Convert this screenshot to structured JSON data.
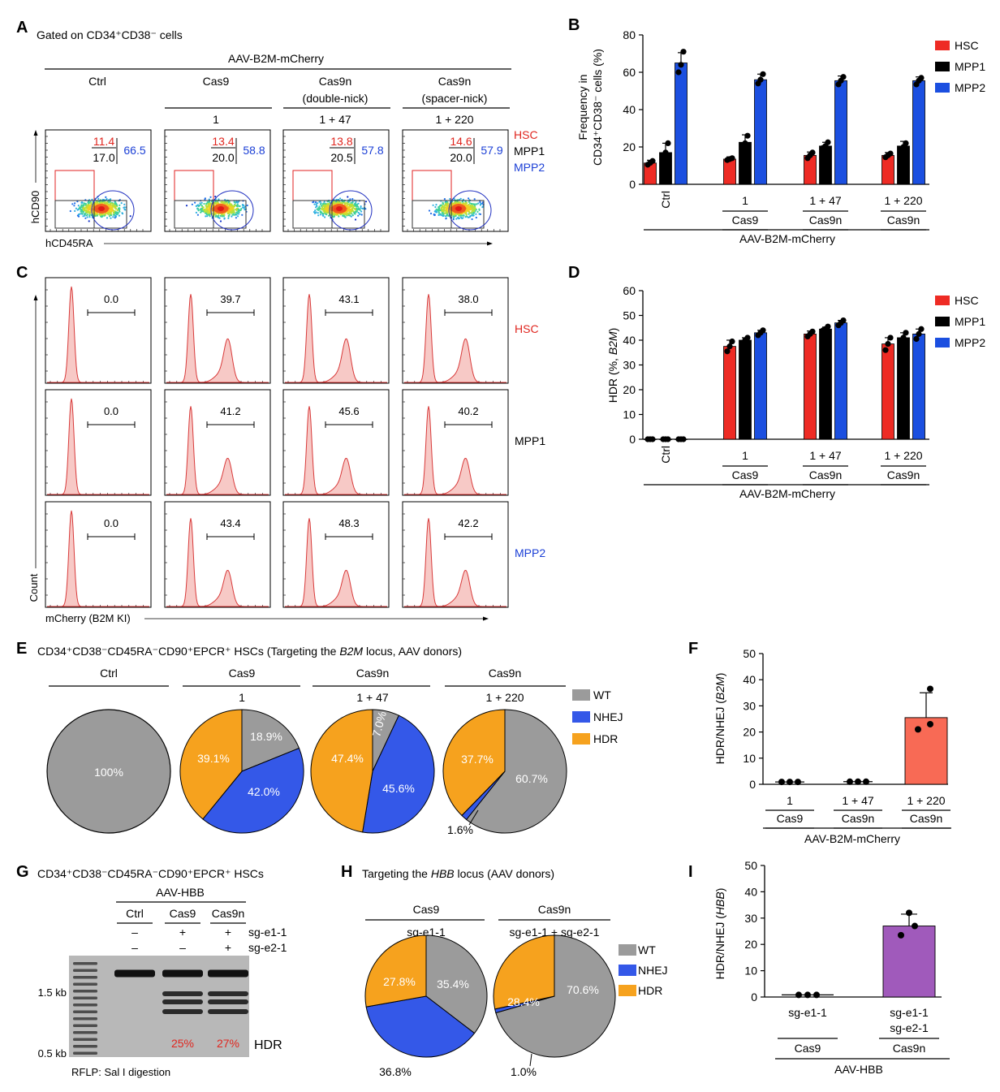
{
  "colors": {
    "hsc": "#ee2b24",
    "mpp1": "#000000",
    "mpp2": "#1b4fe0",
    "wt": "#9b9b9b",
    "nhej": "#3458e8",
    "hdr": "#f6a21e",
    "purple": "#a05abb",
    "salmon": "#f86a55",
    "red_text": "#e0261f",
    "blue_text": "#1b3fd6",
    "hist_fill": "#f7c9c6",
    "hist_line": "#d83a3a"
  },
  "panel_letters": {
    "a": "A",
    "b": "B",
    "c": "C",
    "d": "D",
    "e": "E",
    "f": "F",
    "g": "G",
    "h": "H",
    "i": "I"
  },
  "panel_a": {
    "title": "Gated on CD34⁺CD38⁻ cells",
    "header": "AAV-B2M-mCherry",
    "groups": [
      {
        "name": "Ctrl",
        "sub": "",
        "combo": ""
      },
      {
        "name": "Cas9",
        "sub": "",
        "combo": "1"
      },
      {
        "name": "Cas9n",
        "sub": "(double-nick)",
        "combo": "1 + 47"
      },
      {
        "name": "Cas9n",
        "sub": "(spacer-nick)",
        "combo": "1 + 220"
      }
    ],
    "gates": [
      {
        "hsc": "11.4",
        "mpp1": "17.0",
        "mpp2": "66.5"
      },
      {
        "hsc": "13.4",
        "mpp1": "20.0",
        "mpp2": "58.8"
      },
      {
        "hsc": "13.8",
        "mpp1": "20.5",
        "mpp2": "57.8"
      },
      {
        "hsc": "14.6",
        "mpp1": "20.0",
        "mpp2": "57.9"
      }
    ],
    "legend": [
      "HSC",
      "MPP1",
      "MPP2"
    ],
    "ylabel": "hCD90",
    "xlabel": "hCD45RA"
  },
  "panel_c": {
    "ylabel": "Count",
    "xlabel": "mCherry (B2M KI)",
    "rows": [
      {
        "name": "HSC",
        "values": [
          "0.0",
          "39.7",
          "43.1",
          "38.0"
        ]
      },
      {
        "name": "MPP1",
        "values": [
          "0.0",
          "41.2",
          "45.6",
          "40.2"
        ]
      },
      {
        "name": "MPP2",
        "values": [
          "0.0",
          "43.4",
          "48.3",
          "42.2"
        ]
      }
    ]
  },
  "xgroups_b2m": {
    "ctrl": "Ctrl",
    "combos": [
      "1",
      "1 + 47",
      "1 + 220"
    ],
    "enzymes": [
      "Cas9",
      "Cas9n",
      "Cas9n"
    ],
    "donor": "AAV-B2M-mCherry"
  },
  "chart_data": [
    {
      "id": "B",
      "type": "bar",
      "ylabel": "Frequency in CD34⁺CD38⁻ cells (%)",
      "ylim": [
        0,
        80
      ],
      "yticks": [
        0,
        20,
        40,
        60,
        80
      ],
      "categories": [
        "Ctrl",
        "1",
        "1 + 47",
        "1 + 220"
      ],
      "series": [
        {
          "name": "HSC",
          "values": [
            11.4,
            13.5,
            15.5,
            15.5
          ],
          "err": [
            1.5,
            1.2,
            1.8,
            1.5
          ],
          "points": [
            [
              10.5,
              11.5,
              12.5
            ],
            [
              13,
              13.5,
              14
            ],
            [
              14,
              15.5,
              17
            ],
            [
              14.5,
              15.5,
              16.5
            ]
          ]
        },
        {
          "name": "MPP1",
          "values": [
            17.0,
            22.5,
            20.5,
            20.5
          ],
          "err": [
            5,
            4,
            2,
            2.5
          ],
          "points": [
            [
              13,
              17,
              22
            ],
            [
              18,
              22,
              26
            ],
            [
              19.5,
              20.5,
              22.5
            ],
            [
              18.5,
              20,
              22
            ]
          ]
        },
        {
          "name": "MPP2",
          "values": [
            65,
            56,
            55.5,
            55.5
          ],
          "err": [
            5.5,
            3,
            2.5,
            2
          ],
          "points": [
            [
              60,
              64,
              71
            ],
            [
              54,
              56,
              59
            ],
            [
              53.5,
              55.5,
              57.5
            ],
            [
              53.5,
              55.5,
              57
            ]
          ]
        }
      ],
      "legend": [
        "HSC",
        "MPP1",
        "MPP2"
      ]
    },
    {
      "id": "D",
      "type": "bar",
      "ylabel_pre": "HDR (%, ",
      "ylabel_it": "B2M",
      "ylabel_post": ")",
      "ylim": [
        0,
        60
      ],
      "yticks": [
        0,
        10,
        20,
        30,
        40,
        50,
        60
      ],
      "categories": [
        "Ctrl",
        "1",
        "1 + 47",
        "1 + 220"
      ],
      "series": [
        {
          "name": "HSC",
          "values": [
            0,
            37.5,
            42.5,
            38.5
          ],
          "err": [
            0.2,
            2.5,
            1.2,
            2.5
          ],
          "points": [
            [
              0,
              0,
              0
            ],
            [
              35.5,
              37.5,
              39.5
            ],
            [
              41.5,
              42.5,
              43.5
            ],
            [
              36,
              38.5,
              41
            ]
          ]
        },
        {
          "name": "MPP1",
          "values": [
            0,
            40,
            44.5,
            41
          ],
          "err": [
            0.2,
            1,
            0.8,
            2
          ],
          "points": [
            [
              0,
              0,
              0
            ],
            [
              39,
              40,
              41
            ],
            [
              44,
              44.5,
              45.5
            ],
            [
              39.5,
              41,
              43
            ]
          ]
        },
        {
          "name": "MPP2",
          "values": [
            0,
            43,
            47,
            42.5
          ],
          "err": [
            0.2,
            1,
            1,
            2
          ],
          "points": [
            [
              0,
              0,
              0
            ],
            [
              42,
              43,
              44
            ],
            [
              46,
              47,
              48
            ],
            [
              40.5,
              42.5,
              44.5
            ]
          ]
        }
      ],
      "legend": [
        "HSC",
        "MPP1",
        "MPP2"
      ]
    },
    {
      "id": "E",
      "type": "pie",
      "title_pre": "CD34⁺CD38⁻CD45RA⁻CD90⁺EPCR⁺ HSCs (Targeting the ",
      "title_it": "B2M",
      "title_post": " locus, AAV donors)",
      "groups": [
        {
          "name": "Ctrl",
          "combo": "",
          "slices": {
            "WT": 100,
            "NHEJ": 0,
            "HDR": 0
          },
          "labels": {
            "wt": "100%",
            "nhej": "",
            "hdr": ""
          }
        },
        {
          "name": "Cas9",
          "combo": "1",
          "slices": {
            "WT": 18.9,
            "NHEJ": 42.0,
            "HDR": 39.1
          },
          "labels": {
            "wt": "18.9%",
            "nhej": "42.0%",
            "hdr": "39.1%"
          }
        },
        {
          "name": "Cas9n",
          "combo": "1 + 47",
          "slices": {
            "WT": 7.0,
            "NHEJ": 45.6,
            "HDR": 47.4
          },
          "labels": {
            "wt": "7.0%",
            "nhej": "45.6%",
            "hdr": "47.4%"
          }
        },
        {
          "name": "Cas9n",
          "combo": "1 + 220",
          "slices": {
            "WT": 60.7,
            "NHEJ": 1.6,
            "HDR": 37.7
          },
          "labels": {
            "wt": "60.7%",
            "nhej": "1.6%",
            "hdr": "37.7%"
          }
        }
      ],
      "legend": [
        "WT",
        "NHEJ",
        "HDR"
      ]
    },
    {
      "id": "F",
      "type": "bar",
      "ylabel_pre": "HDR/NHEJ (",
      "ylabel_it": "B2M",
      "ylabel_post": ")",
      "ylim": [
        0,
        50
      ],
      "yticks": [
        0,
        10,
        20,
        30,
        40,
        50
      ],
      "categories": [
        "1",
        "1 + 47",
        "1 + 220"
      ],
      "values": [
        0.9,
        1.0,
        25.5
      ],
      "err": [
        0,
        0,
        9.5
      ],
      "points": [
        [
          0.9,
          0.9,
          0.9
        ],
        [
          1,
          1,
          1
        ],
        [
          21,
          23,
          36.5
        ]
      ],
      "enzymes": [
        "Cas9",
        "Cas9n",
        "Cas9n"
      ],
      "donor": "AAV-B2M-mCherry"
    },
    {
      "id": "H",
      "type": "pie",
      "title_pre": "Targeting the ",
      "title_it": "HBB",
      "title_post": " locus (AAV donors)",
      "groups": [
        {
          "name": "Cas9",
          "combo": "sg-e1-1",
          "slices": {
            "WT": 35.4,
            "NHEJ": 36.8,
            "HDR": 27.8
          },
          "labels": {
            "wt": "35.4%",
            "nhej": "36.8%",
            "hdr": "27.8%"
          }
        },
        {
          "name": "Cas9n",
          "combo": "sg-e1-1 + sg-e2-1",
          "slices": {
            "WT": 70.6,
            "NHEJ": 1.0,
            "HDR": 28.4
          },
          "labels": {
            "wt": "70.6%",
            "nhej": "1.0%",
            "hdr": "28.4%"
          }
        }
      ],
      "legend": [
        "WT",
        "NHEJ",
        "HDR"
      ]
    },
    {
      "id": "I",
      "type": "bar",
      "ylabel_pre": "HDR/NHEJ (",
      "ylabel_it": "HBB",
      "ylabel_post": ")",
      "ylim": [
        0,
        50
      ],
      "yticks": [
        0,
        10,
        20,
        30,
        40,
        50
      ],
      "categories": [
        "sg-e1-1",
        "sg-e1-1 sg-e2-1"
      ],
      "values": [
        0.8,
        27
      ],
      "err": [
        0,
        4.5
      ],
      "points": [
        [
          0.8,
          0.8,
          0.8
        ],
        [
          23.5,
          27,
          32
        ]
      ],
      "enzymes": [
        "Cas9",
        "Cas9n"
      ],
      "donor": "AAV-HBB"
    }
  ],
  "panel_g": {
    "title": "CD34⁺CD38⁻CD45RA⁻CD90⁺EPCR⁺ HSCs",
    "donor": "AAV-HBB",
    "lanes": [
      "Ctrl",
      "Cas9",
      "Cas9n"
    ],
    "sg1": {
      "name": "sg-e1-1",
      "values": [
        "–",
        "+",
        "+"
      ]
    },
    "sg2": {
      "name": "sg-e2-1",
      "values": [
        "–",
        "–",
        "+"
      ]
    },
    "ladder": [
      "1.5 kb",
      "0.5 kb"
    ],
    "hdr_values": [
      "25%",
      "27%"
    ],
    "hdr_label": "HDR",
    "caption": "RFLP: Sal I digestion"
  }
}
